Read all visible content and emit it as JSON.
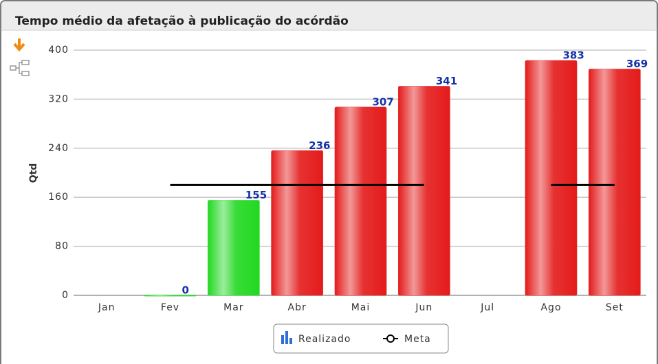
{
  "chart_data": {
    "type": "bar",
    "title": "Tempo médio da afetação à publicação do acórdão",
    "y_label": "Qtd",
    "categories": [
      "Jan",
      "Fev",
      "Mar",
      "Abr",
      "Mai",
      "Jun",
      "Jul",
      "Ago",
      "Set"
    ],
    "series": [
      {
        "name": "Realizado",
        "type": "bar",
        "colors": [
          "#e41b1b",
          "#22d822",
          "#22d822",
          "#e41b1b",
          "#e41b1b",
          "#e41b1b",
          "#e41b1b",
          "#e41b1b",
          "#e41b1b"
        ],
        "values": [
          null,
          0,
          155,
          236,
          307,
          341,
          null,
          383,
          369
        ]
      },
      {
        "name": "Meta",
        "type": "line",
        "color": "#000000",
        "values": [
          null,
          180,
          180,
          180,
          180,
          180,
          null,
          180,
          180
        ]
      }
    ],
    "ylim": [
      0,
      400
    ],
    "yticks": [
      0,
      80,
      160,
      240,
      320,
      400
    ],
    "grid": true,
    "legend": "bottom"
  }
}
